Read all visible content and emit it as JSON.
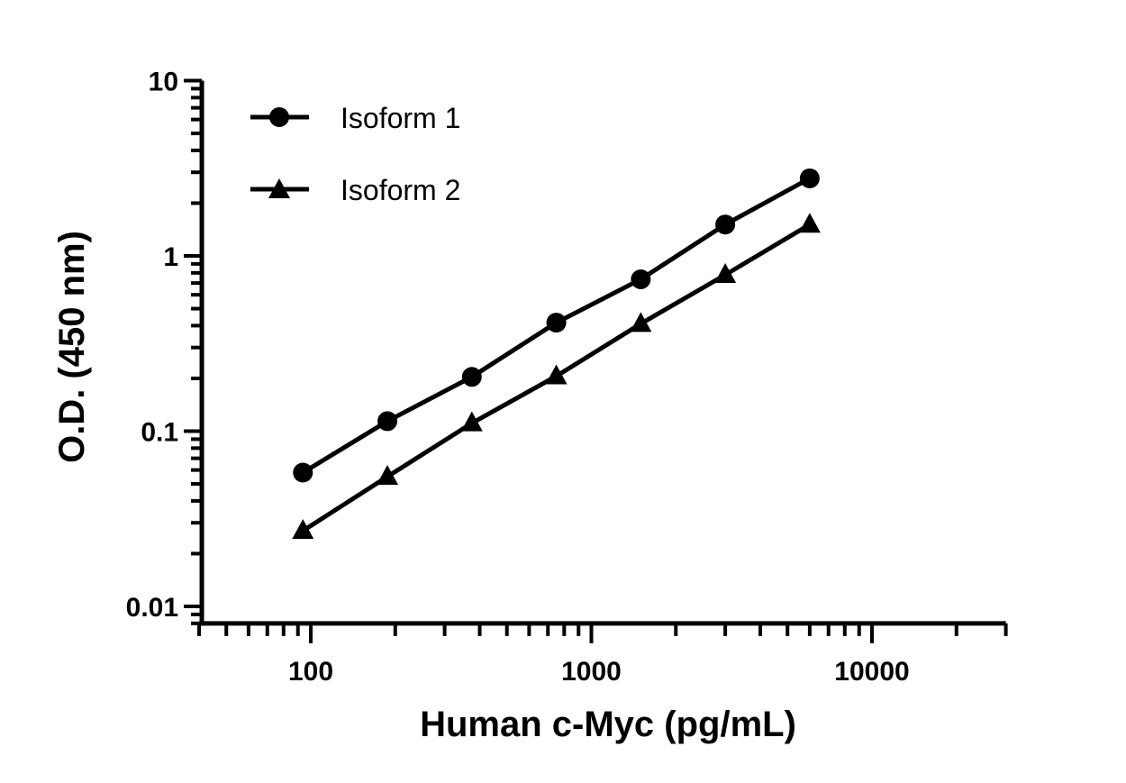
{
  "chart_data": {
    "type": "line",
    "title": "",
    "xlabel": "Human c-Myc (pg/mL)",
    "ylabel": "O.D. (450 nm)",
    "x_scale": "log",
    "y_scale": "log",
    "xlim": [
      40,
      30000
    ],
    "ylim": [
      0.008,
      10
    ],
    "x_ticks": [
      100,
      1000,
      10000
    ],
    "x_tick_labels": [
      "100",
      "1000",
      "10000"
    ],
    "y_ticks": [
      0.01,
      0.1,
      1,
      10
    ],
    "y_tick_labels": [
      "0.01",
      "0.1",
      "1",
      "10"
    ],
    "grid": false,
    "legend_position": "top-left",
    "x": [
      93.75,
      187.5,
      375,
      750,
      1500,
      3000,
      6000
    ],
    "series": [
      {
        "name": "Isoform 1",
        "marker": "circle",
        "color": "#000000",
        "values": [
          0.058,
          0.114,
          0.204,
          0.416,
          0.735,
          1.51,
          2.77
        ]
      },
      {
        "name": "Isoform 2",
        "marker": "triangle",
        "color": "#000000",
        "values": [
          0.027,
          0.055,
          0.111,
          0.206,
          0.41,
          0.78,
          1.51
        ]
      }
    ]
  }
}
